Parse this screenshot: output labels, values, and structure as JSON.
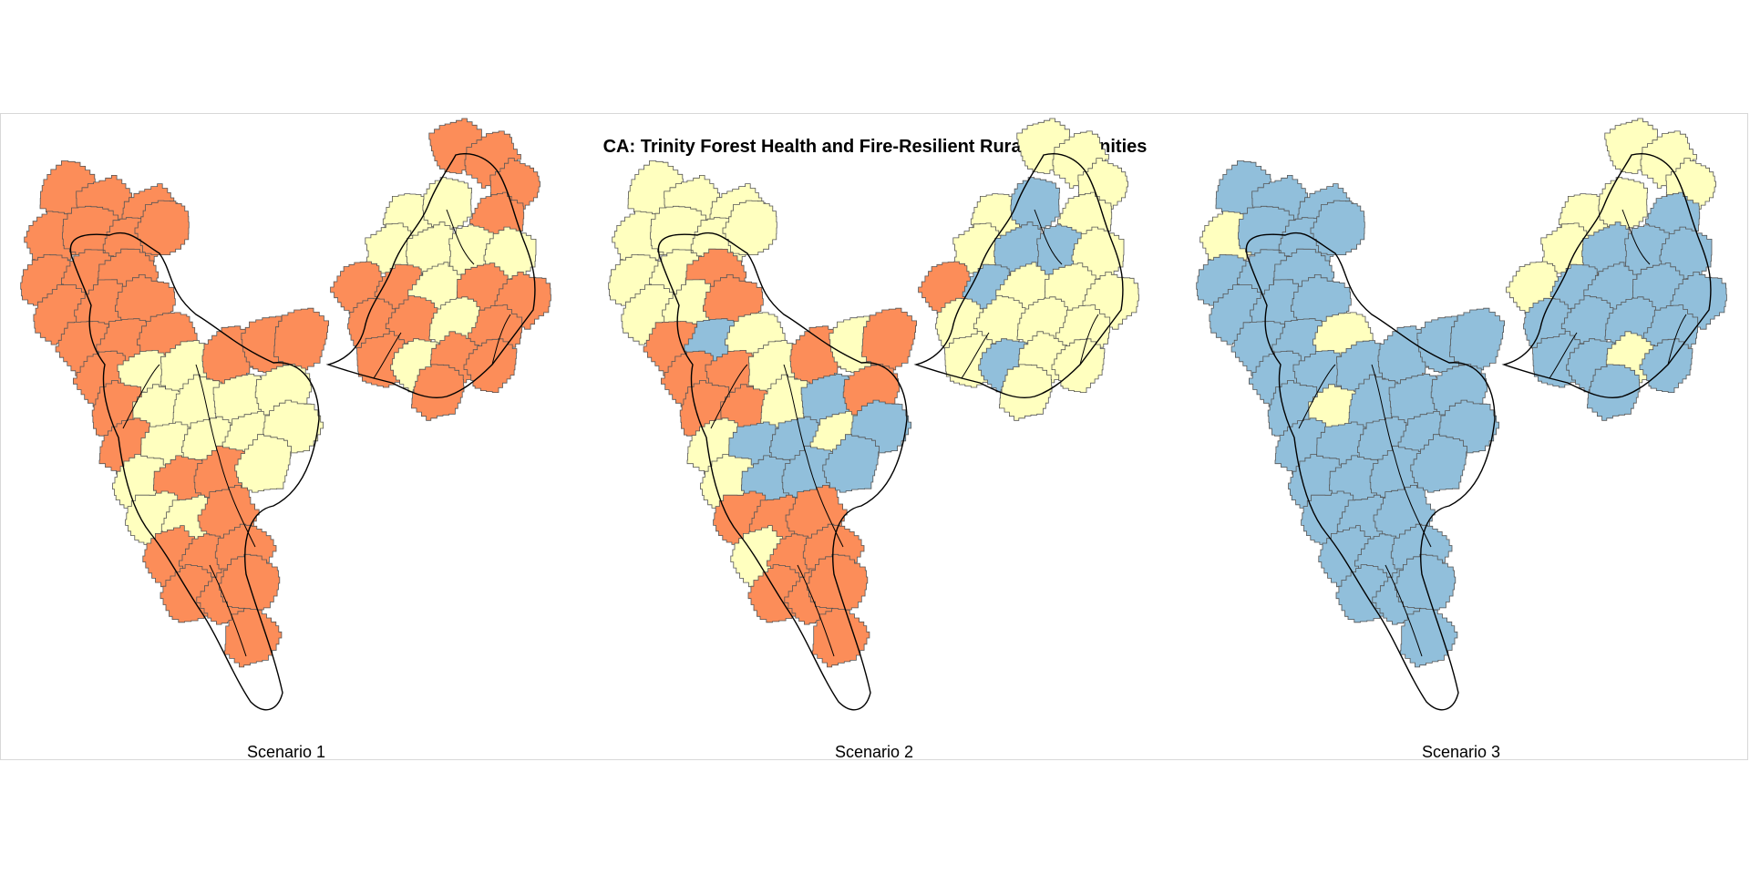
{
  "title": "CA: Trinity Forest Health and Fire-Resilient Rural Communities",
  "colors": {
    "orange": "#fc8d59",
    "yellow": "#ffffbf",
    "blue": "#91bfdb",
    "edge": "#555555",
    "outline": "#000000"
  },
  "panels": [
    {
      "caption": "Scenario 1",
      "west": [
        "o",
        "o",
        "o",
        "o",
        "o",
        "o",
        "o",
        "o",
        "o",
        "o",
        "o",
        "o",
        "o",
        "o",
        "o",
        "o",
        "o",
        "y",
        "y",
        "o",
        "o",
        "o",
        "o",
        "y",
        "y",
        "y",
        "y",
        "o",
        "y",
        "y",
        "y",
        "y",
        "y",
        "o",
        "o",
        "y",
        "y",
        "y",
        "o",
        "o",
        "o",
        "o",
        "o",
        "o",
        "o",
        "o"
      ],
      "east": [
        "o",
        "o",
        "o",
        "y",
        "y",
        "o",
        "y",
        "y",
        "y",
        "y",
        "o",
        "o",
        "y",
        "o",
        "o",
        "o",
        "o",
        "y",
        "o",
        "o",
        "y",
        "o",
        "o",
        "o"
      ]
    },
    {
      "caption": "Scenario 2",
      "west": [
        "y",
        "y",
        "y",
        "y",
        "y",
        "y",
        "y",
        "y",
        "y",
        "o",
        "y",
        "y",
        "o",
        "o",
        "b",
        "y",
        "o",
        "o",
        "y",
        "o",
        "y",
        "o",
        "o",
        "o",
        "y",
        "b",
        "o",
        "y",
        "b",
        "b",
        "y",
        "b",
        "y",
        "b",
        "b",
        "b",
        "o",
        "o",
        "o",
        "y",
        "o",
        "o",
        "o",
        "o",
        "o",
        "o"
      ],
      "east": [
        "y",
        "y",
        "y",
        "y",
        "b",
        "y",
        "y",
        "b",
        "b",
        "y",
        "o",
        "b",
        "y",
        "y",
        "y",
        "y",
        "y",
        "y",
        "y",
        "y",
        "b",
        "y",
        "y",
        "y"
      ]
    },
    {
      "caption": "Scenario 3",
      "west": [
        "b",
        "b",
        "b",
        "y",
        "b",
        "b",
        "b",
        "b",
        "b",
        "b",
        "b",
        "b",
        "b",
        "b",
        "b",
        "y",
        "b",
        "b",
        "b",
        "b",
        "b",
        "b",
        "b",
        "y",
        "b",
        "b",
        "b",
        "b",
        "b",
        "b",
        "b",
        "b",
        "b",
        "b",
        "b",
        "b",
        "b",
        "b",
        "b",
        "b",
        "b",
        "b",
        "b",
        "b",
        "b",
        "b"
      ],
      "east": [
        "y",
        "y",
        "y",
        "y",
        "y",
        "b",
        "y",
        "b",
        "b",
        "b",
        "y",
        "b",
        "b",
        "b",
        "b",
        "b",
        "b",
        "b",
        "b",
        "b",
        "b",
        "y",
        "b",
        "b"
      ]
    }
  ]
}
